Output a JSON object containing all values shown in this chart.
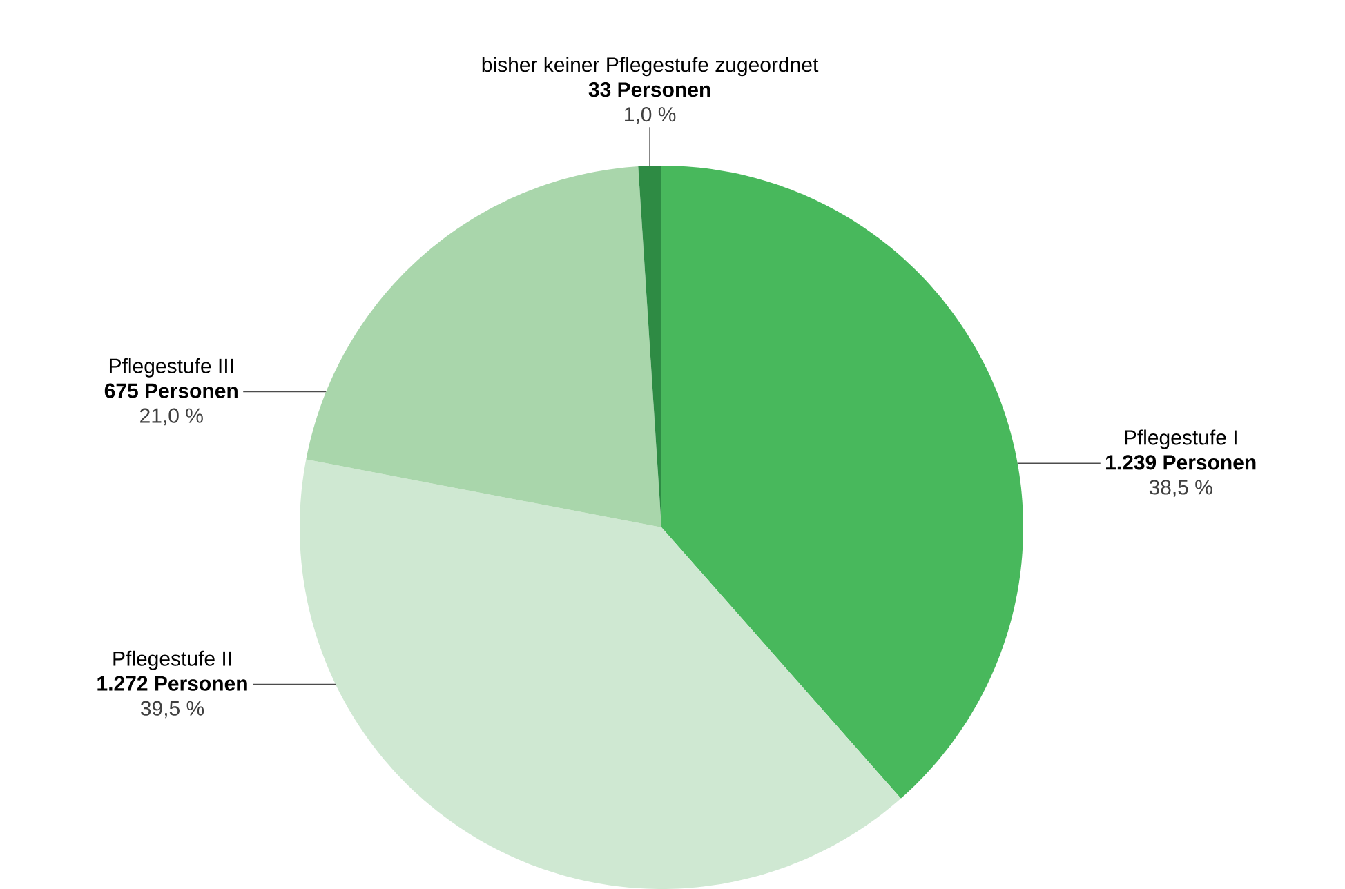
{
  "chart_data": {
    "type": "pie",
    "categories": [
      "Pflegestufe I",
      "Pflegestufe II",
      "Pflegestufe III",
      "bisher keiner Pflegestufe zugeordnet"
    ],
    "values": [
      1239,
      1272,
      675,
      33
    ],
    "colors": [
      "#48b85c",
      "#cfe8d2",
      "#a9d6ab",
      "#2e8b44"
    ],
    "value_labels": [
      "1.239 Personen",
      "1.272 Personen",
      "675 Personen",
      "33 Personen"
    ],
    "annotations": [
      "38,5 %",
      "39,5 %",
      "21,0 %",
      "1,0 %"
    ]
  }
}
